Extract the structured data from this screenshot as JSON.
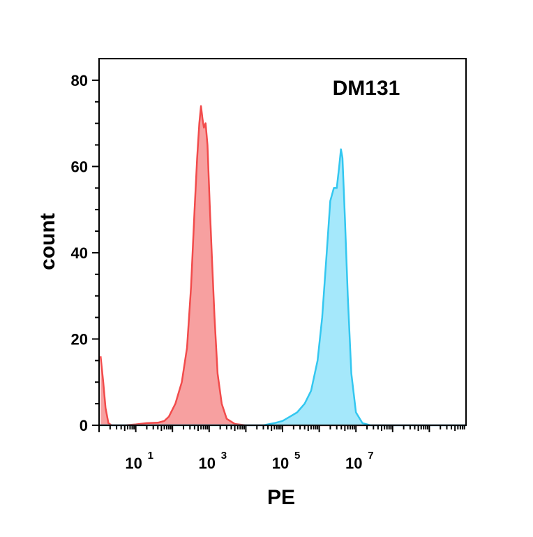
{
  "chart_data": {
    "type": "area",
    "title": "DM131",
    "xlabel": "PE",
    "ylabel": "count",
    "x_scale": "log10",
    "xlim": [
      1,
      10000000000
    ],
    "ylim": [
      0,
      85
    ],
    "x_tick_labels": [
      {
        "base": "10",
        "exp": "1",
        "value": 10
      },
      {
        "base": "10",
        "exp": "3",
        "value": 1000
      },
      {
        "base": "10",
        "exp": "5",
        "value": 100000
      },
      {
        "base": "10",
        "exp": "7",
        "value": 10000000
      }
    ],
    "y_ticks": [
      0,
      20,
      40,
      60,
      80
    ],
    "grid": false,
    "series": [
      {
        "color": "#f24b4b",
        "fill": "#f7a0a0",
        "points": [
          [
            1.1,
            16
          ],
          [
            1.3,
            10
          ],
          [
            1.5,
            4
          ],
          [
            1.8,
            0.5
          ],
          [
            2.2,
            0
          ],
          [
            5,
            0
          ],
          [
            10,
            0.2
          ],
          [
            20,
            0.5
          ],
          [
            40,
            0.6
          ],
          [
            60,
            1
          ],
          [
            80,
            2
          ],
          [
            120,
            5
          ],
          [
            180,
            10
          ],
          [
            250,
            18
          ],
          [
            320,
            32
          ],
          [
            400,
            50
          ],
          [
            470,
            62
          ],
          [
            540,
            70
          ],
          [
            600,
            74
          ],
          [
            660,
            71
          ],
          [
            720,
            69
          ],
          [
            800,
            70
          ],
          [
            900,
            65
          ],
          [
            1050,
            50
          ],
          [
            1200,
            38
          ],
          [
            1400,
            25
          ],
          [
            1700,
            12
          ],
          [
            2200,
            5
          ],
          [
            3000,
            1.5
          ],
          [
            5000,
            0.3
          ],
          [
            10000,
            0
          ],
          [
            10000000000,
            0
          ]
        ]
      },
      {
        "color": "#33c7f0",
        "fill": "#a5e8fb",
        "points": [
          [
            1,
            0
          ],
          [
            30000,
            0
          ],
          [
            60000,
            0.5
          ],
          [
            100000,
            1
          ],
          [
            160000,
            2
          ],
          [
            250000,
            3
          ],
          [
            400000,
            5
          ],
          [
            600000,
            8
          ],
          [
            900000,
            15
          ],
          [
            1200000,
            25
          ],
          [
            1600000,
            40
          ],
          [
            2000000,
            52
          ],
          [
            2500000,
            55
          ],
          [
            3000000,
            55
          ],
          [
            3500000,
            60
          ],
          [
            3900000,
            64
          ],
          [
            4300000,
            62
          ],
          [
            5000000,
            48
          ],
          [
            6000000,
            30
          ],
          [
            7500000,
            12
          ],
          [
            10000000,
            3
          ],
          [
            15000000,
            0.5
          ],
          [
            25000000,
            0
          ],
          [
            10000000000,
            0
          ]
        ]
      }
    ]
  }
}
